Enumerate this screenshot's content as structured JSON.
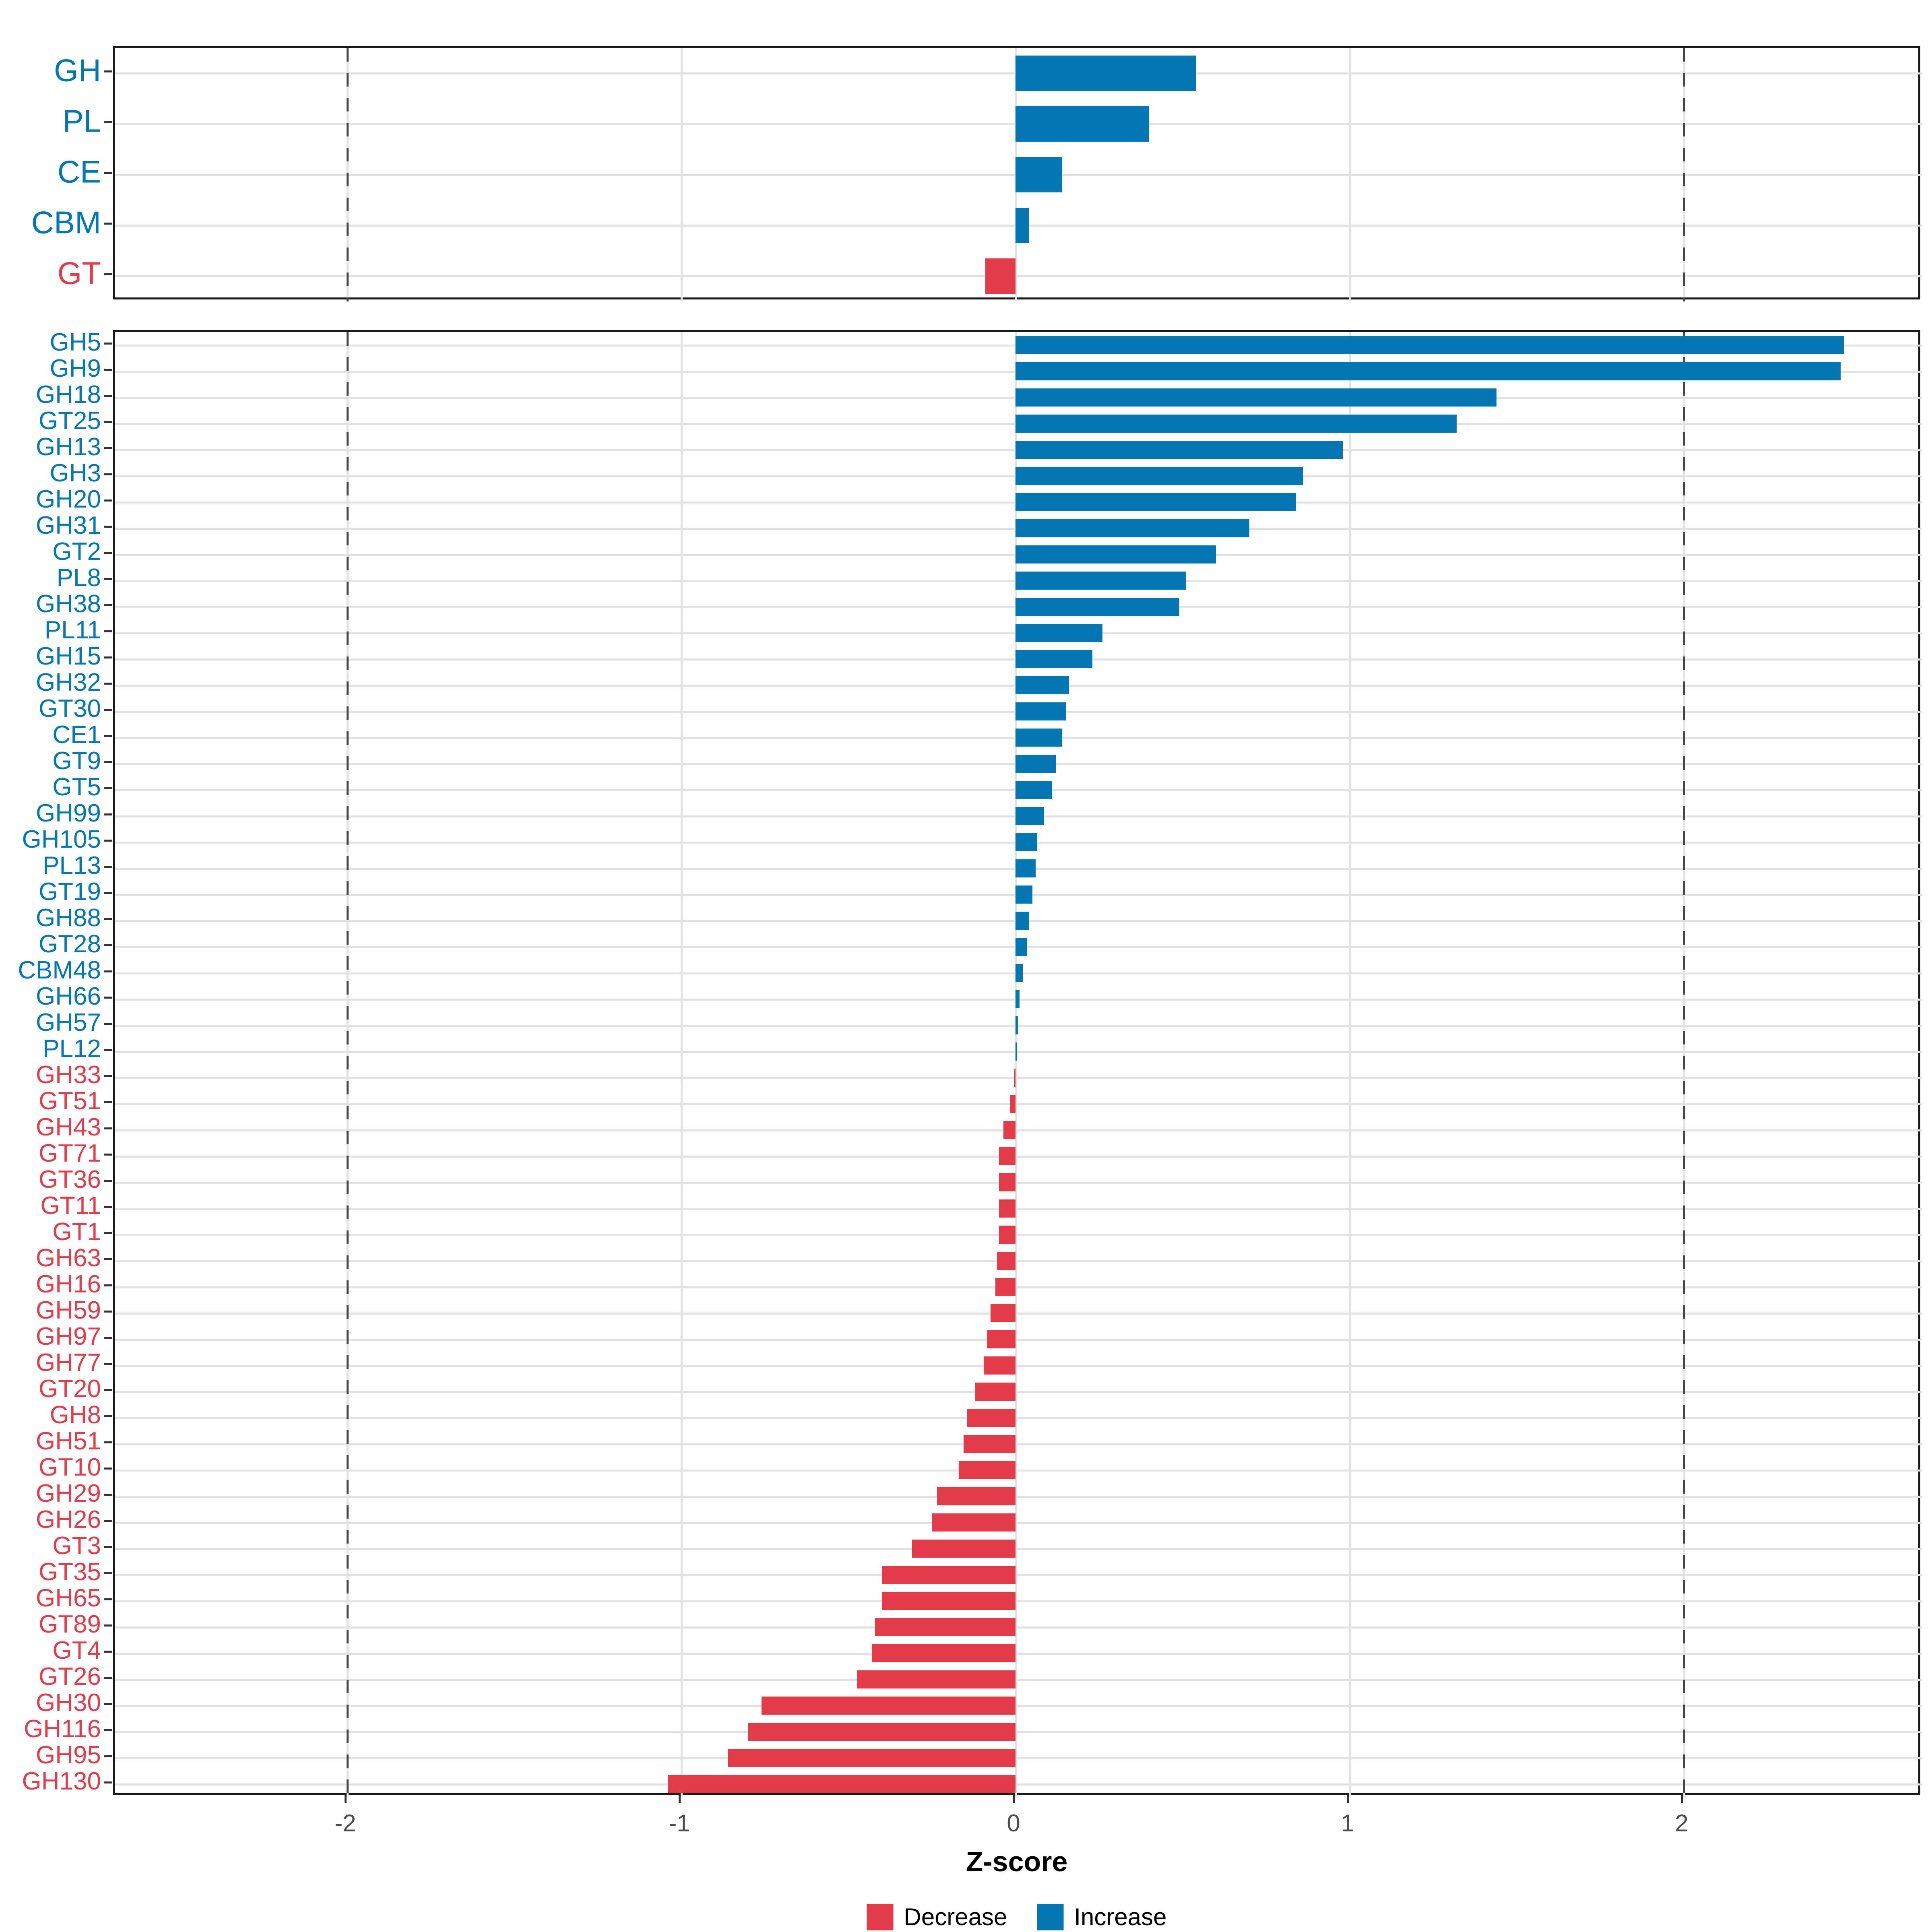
{
  "chart_data": {
    "type": "bar",
    "orientation": "horizontal",
    "title": "",
    "xlabel": "Z-score",
    "x_ticks": [
      -2,
      -1,
      0,
      1,
      2
    ],
    "xlim": [
      -2.7,
      2.71
    ],
    "reference_lines": [
      -2,
      2
    ],
    "grid": "on",
    "legend_position": "bottom-center",
    "colors": {
      "increase": "#0277B4",
      "decrease": "#E43B4A",
      "grid": "#E2E2E2",
      "reference_line": "#474747",
      "axis_text": "#4D4D4D",
      "panel_border": "#1A1A1A"
    },
    "legend": [
      {
        "label": "Decrease",
        "key": "decrease"
      },
      {
        "label": "Increase",
        "key": "increase"
      }
    ],
    "panels": [
      {
        "name": "summary",
        "categories": [
          "GH",
          "PL",
          "CE",
          "CBM",
          "GT"
        ],
        "values": [
          0.54,
          0.4,
          0.14,
          0.04,
          -0.09
        ]
      },
      {
        "name": "families",
        "categories": [
          "GH5",
          "GH9",
          "GH18",
          "GT25",
          "GH13",
          "GH3",
          "GH20",
          "GH31",
          "GT2",
          "PL8",
          "GH38",
          "PL11",
          "GH15",
          "GH32",
          "GT30",
          "CE1",
          "GT9",
          "GT5",
          "GH99",
          "GH105",
          "PL13",
          "GT19",
          "GH88",
          "GT28",
          "CBM48",
          "GH66",
          "GH57",
          "PL12",
          "GH33",
          "GT51",
          "GH43",
          "GT71",
          "GT36",
          "GT11",
          "GT1",
          "GH63",
          "GH16",
          "GH59",
          "GH97",
          "GH77",
          "GT20",
          "GH8",
          "GH51",
          "GT10",
          "GH29",
          "GH26",
          "GT3",
          "GT35",
          "GH65",
          "GT89",
          "GT4",
          "GT26",
          "GH30",
          "GH116",
          "GH95",
          "GH130"
        ],
        "values": [
          2.48,
          2.47,
          1.44,
          1.32,
          0.98,
          0.86,
          0.84,
          0.7,
          0.6,
          0.51,
          0.49,
          0.26,
          0.23,
          0.16,
          0.15,
          0.14,
          0.12,
          0.11,
          0.085,
          0.065,
          0.06,
          0.05,
          0.04,
          0.035,
          0.022,
          0.012,
          0.007,
          0.005,
          -0.004,
          -0.017,
          -0.036,
          -0.05,
          -0.05,
          -0.05,
          -0.05,
          -0.055,
          -0.06,
          -0.075,
          -0.085,
          -0.095,
          -0.12,
          -0.145,
          -0.155,
          -0.17,
          -0.235,
          -0.25,
          -0.31,
          -0.4,
          -0.4,
          -0.42,
          -0.43,
          -0.475,
          -0.76,
          -0.8,
          -0.86,
          -1.04
        ]
      }
    ]
  }
}
